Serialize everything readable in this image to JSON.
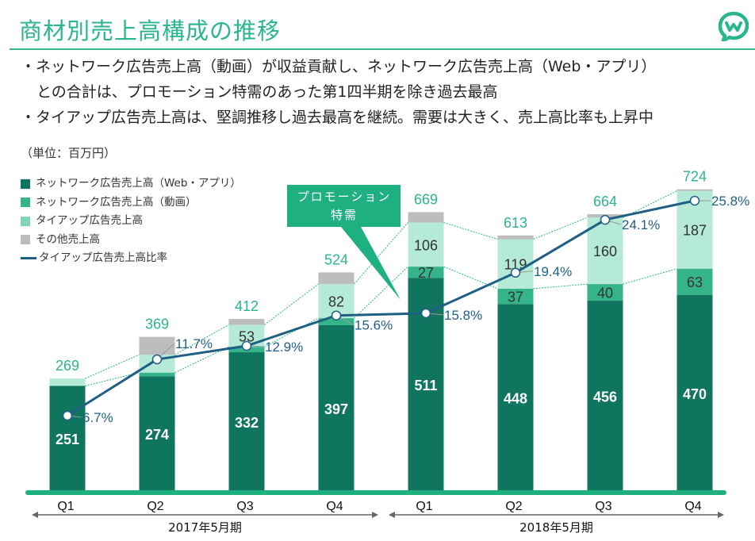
{
  "header": {
    "title": "商材別売上高構成の推移",
    "logo_icon": "chat-bubble-w-logo-icon"
  },
  "bullets": [
    "・ネットワーク広告売上高（動画）が収益貢献し、ネットワーク広告売上高（Web・アプリ）",
    "との合計は、プロモーション特需のあった第1四半期を除き過去最高",
    "・タイアップ広告売上高は、堅調推移し過去最高を継続。需要は大きく、売上高比率も上昇中"
  ],
  "colors": {
    "accent": "#2bb58c",
    "network_web": "#10755e",
    "network_video": "#35b48b",
    "tieup": "#b4ead6",
    "other": "#bdbdbd",
    "ratio_line": "#1f5f86",
    "axis": "#1fb080"
  },
  "callout": {
    "line1": "プロモーション",
    "line2": "特需"
  },
  "chart_data": {
    "type": "bar",
    "stacked": true,
    "unit_label": "（単位：百万円）",
    "categories": [
      "Q1",
      "Q2",
      "Q3",
      "Q4",
      "Q1",
      "Q2",
      "Q3",
      "Q4"
    ],
    "groups": [
      {
        "label": "2017年5月期",
        "categories": [
          "Q1",
          "Q2",
          "Q3",
          "Q4"
        ]
      },
      {
        "label": "2018年5月期",
        "categories": [
          "Q1",
          "Q2",
          "Q3",
          "Q4"
        ]
      }
    ],
    "series": [
      {
        "name": "ネットワーク広告売上高（Web・アプリ）",
        "color": "#10755e",
        "values": [
          251,
          274,
          332,
          397,
          511,
          448,
          456,
          470
        ],
        "show_labels": [
          true,
          true,
          true,
          true,
          true,
          true,
          true,
          true
        ]
      },
      {
        "name": "ネットワーク広告売上高（動画）",
        "color": "#35b48b",
        "values": [
          0,
          9,
          13,
          17,
          27,
          37,
          40,
          63
        ],
        "show_labels": [
          false,
          false,
          false,
          false,
          true,
          true,
          true,
          true
        ]
      },
      {
        "name": "タイアップ広告売上高",
        "color": "#b4ead6",
        "values": [
          18,
          43,
          53,
          82,
          106,
          119,
          160,
          187
        ],
        "show_labels": [
          false,
          false,
          true,
          true,
          true,
          true,
          true,
          true
        ]
      },
      {
        "name": "その他売上高",
        "color": "#bdbdbd",
        "values": [
          0,
          43,
          14,
          28,
          25,
          9,
          8,
          4
        ],
        "show_labels": [
          false,
          false,
          false,
          false,
          false,
          false,
          false,
          false
        ]
      }
    ],
    "totals": [
      269,
      369,
      412,
      524,
      669,
      613,
      664,
      724
    ],
    "line_series": {
      "name": "タイアップ広告売上高比率",
      "color": "#1f5f86",
      "values": [
        6.7,
        11.7,
        12.9,
        15.6,
        15.8,
        19.4,
        24.1,
        25.8
      ],
      "labels": [
        "6.7%",
        "11.7%",
        "12.9%",
        "15.6%",
        "15.8%",
        "19.4%",
        "24.1%",
        "25.8%"
      ]
    },
    "ylim": [
      0,
      724
    ],
    "grid": false,
    "legend_position": "top-left"
  }
}
